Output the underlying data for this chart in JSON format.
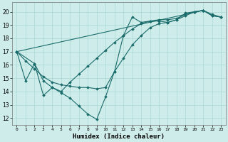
{
  "xlabel": "Humidex (Indice chaleur)",
  "bg_color": "#ceecea",
  "line_color": "#1a6b6b",
  "grid_color": "#a8d8d4",
  "xlim": [
    -0.5,
    23.5
  ],
  "ylim": [
    11.5,
    20.7
  ],
  "yticks": [
    12,
    13,
    14,
    15,
    16,
    17,
    18,
    19,
    20
  ],
  "xticks": [
    0,
    1,
    2,
    3,
    4,
    5,
    6,
    7,
    8,
    9,
    10,
    11,
    12,
    13,
    14,
    15,
    16,
    17,
    18,
    19,
    20,
    21,
    22,
    23
  ],
  "series": [
    {
      "x": [
        0,
        2,
        3,
        4,
        5,
        6,
        7,
        8,
        9,
        10,
        11,
        12,
        13,
        14,
        15,
        16,
        17,
        18,
        19,
        20,
        21,
        22,
        23
      ],
      "y": [
        17,
        16.1,
        14.8,
        14.3,
        14.0,
        14.7,
        15.3,
        15.9,
        16.5,
        17.1,
        17.7,
        18.2,
        18.7,
        19.1,
        19.3,
        19.4,
        19.4,
        19.5,
        19.8,
        20.0,
        20.1,
        19.7,
        19.6
      ]
    },
    {
      "x": [
        0,
        1,
        2,
        3,
        4,
        5,
        6,
        7,
        8,
        9,
        10,
        11,
        12,
        13,
        14,
        15,
        16,
        17,
        18,
        19,
        20,
        21
      ],
      "y": [
        17,
        14.8,
        16.1,
        13.7,
        14.3,
        13.9,
        13.5,
        12.9,
        12.3,
        11.9,
        13.6,
        15.5,
        18.2,
        19.6,
        19.2,
        19.3,
        19.3,
        19.2,
        19.4,
        19.9,
        20.0,
        20.1
      ]
    },
    {
      "x": [
        0,
        1,
        2,
        3,
        4,
        5,
        6,
        7,
        8,
        9,
        10,
        11,
        12,
        13,
        14,
        15,
        16,
        17,
        18,
        19,
        20,
        21,
        22,
        23
      ],
      "y": [
        17,
        16.3,
        15.7,
        15.1,
        14.7,
        14.5,
        14.4,
        14.3,
        14.3,
        14.2,
        14.3,
        15.5,
        16.5,
        17.5,
        18.2,
        18.8,
        19.1,
        19.2,
        19.4,
        19.7,
        20.0,
        20.1,
        19.8,
        19.6
      ]
    },
    {
      "x": [
        0,
        21,
        22,
        23
      ],
      "y": [
        17,
        20.1,
        19.7,
        19.6
      ]
    }
  ]
}
